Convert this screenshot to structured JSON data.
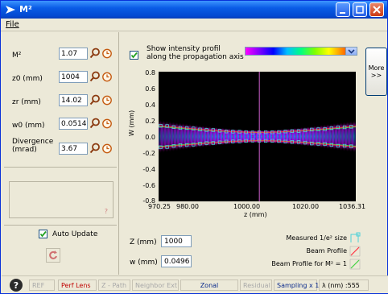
{
  "window": {
    "title": "M²"
  },
  "menu": {
    "file": "File"
  },
  "params": [
    {
      "label": "M²",
      "value": "1.07"
    },
    {
      "label": "z0 (mm)",
      "value": "1004"
    },
    {
      "label": "zr (mm)",
      "value": "14.02"
    },
    {
      "label": "w0 (mm)",
      "value": "0.05145"
    },
    {
      "label": "Divergence (mrad)",
      "value": "3.67"
    }
  ],
  "message_box": {
    "marker": "?"
  },
  "auto_update": {
    "label": "Auto Update",
    "checked": true
  },
  "intensity": {
    "label_line1": "Show intensity profil",
    "label_line2": "along the propagation axis",
    "checked": true
  },
  "more_button": {
    "line1": "More",
    "line2": ">>"
  },
  "chart_data": {
    "type": "scatter",
    "xlabel": "z (mm)",
    "ylabel": "W (mm)",
    "xlim": [
      970.25,
      1036.31
    ],
    "ylim": [
      -0.8,
      0.8
    ],
    "x_ticks": [
      "970.25",
      "980.00",
      "1000.00",
      "1020.00",
      "1036.31"
    ],
    "y_ticks": [
      "0.8",
      "0.6",
      "0.4",
      "0.2",
      "0.0",
      "-0.2",
      "-0.4",
      "-0.6",
      "-0.8"
    ],
    "cursor_z": 1004,
    "z0": 1004,
    "w0": 0.0514,
    "zr": 14.02,
    "series": [
      {
        "name": "Measured 1/e² size",
        "color": "#4fd1d9"
      },
      {
        "name": "Beam Profile",
        "color": "#ff3040"
      },
      {
        "name": "Beam Profile for M² = 1",
        "color": "#40d040"
      }
    ]
  },
  "readout": {
    "z_label": "Z (mm)",
    "z_value": "1000",
    "w_label": "w (mm)",
    "w_value": "0.0496"
  },
  "status": {
    "ref": "REF",
    "perf_lens": "Perf Lens",
    "z_path": "Z - Path",
    "neighbor": "Neighbor Ext",
    "zonal": "Zonal",
    "residual": "Residual",
    "sampling": "Sampling x 1",
    "lambda": "λ (nm) :555"
  }
}
